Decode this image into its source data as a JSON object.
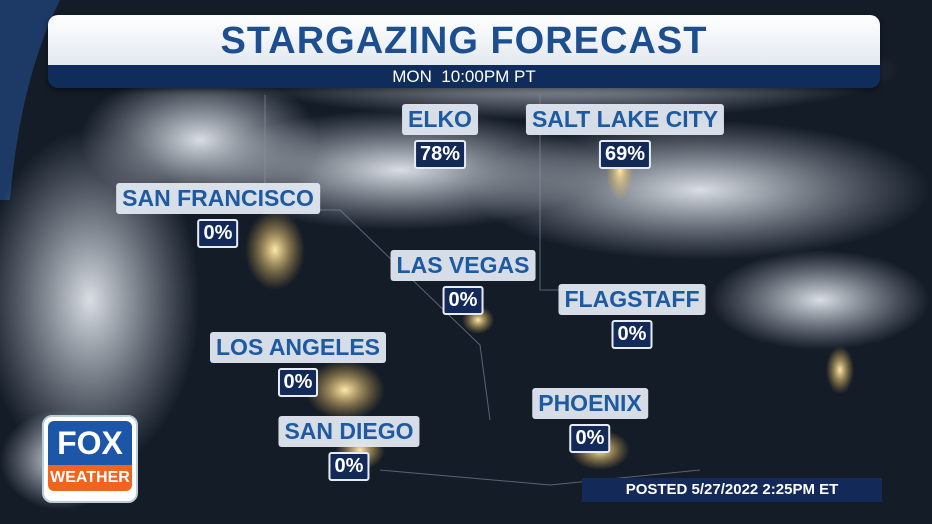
{
  "header": {
    "title": "STARGAZING FORECAST",
    "subtitle": "MON  10:00PM PT"
  },
  "cities": [
    {
      "name": "ELKO",
      "value": "78%"
    },
    {
      "name": "SALT LAKE CITY",
      "value": "69%"
    },
    {
      "name": "SAN FRANCISCO",
      "value": "0%"
    },
    {
      "name": "LAS VEGAS",
      "value": "0%"
    },
    {
      "name": "FLAGSTAFF",
      "value": "0%"
    },
    {
      "name": "LOS ANGELES",
      "value": "0%"
    },
    {
      "name": "SAN DIEGO",
      "value": "0%"
    },
    {
      "name": "PHOENIX",
      "value": "0%"
    }
  ],
  "logo": {
    "line1": "FOX",
    "line2": "WEATHER"
  },
  "posted": "POSTED 5/27/2022 2:25PM ET"
}
